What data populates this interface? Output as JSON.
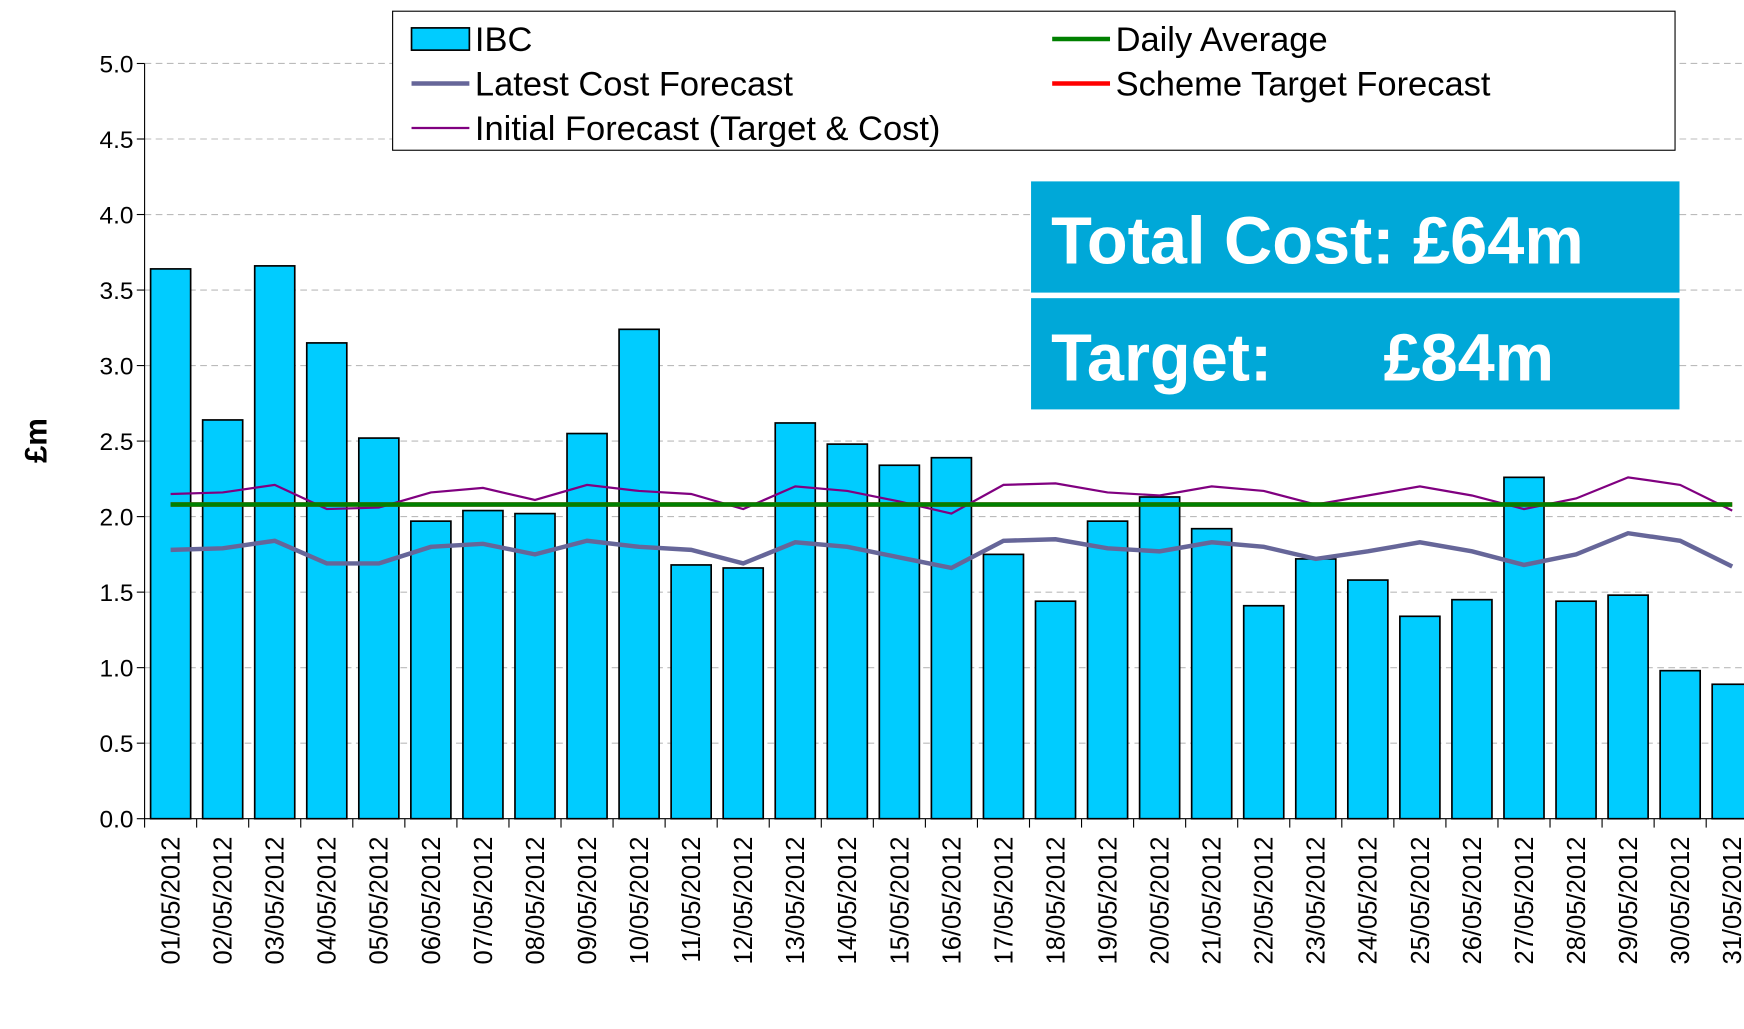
{
  "chart_data": {
    "type": "bar",
    "y_label": "£m",
    "categories": [
      "01/05/2012",
      "02/05/2012",
      "03/05/2012",
      "04/05/2012",
      "05/05/2012",
      "06/05/2012",
      "07/05/2012",
      "08/05/2012",
      "09/05/2012",
      "10/05/2012",
      "11/05/2012",
      "12/05/2012",
      "13/05/2012",
      "14/05/2012",
      "15/05/2012",
      "16/05/2012",
      "17/05/2012",
      "18/05/2012",
      "19/05/2012",
      "20/05/2012",
      "21/05/2012",
      "22/05/2012",
      "23/05/2012",
      "24/05/2012",
      "25/05/2012",
      "26/05/2012",
      "27/05/2012",
      "28/05/2012",
      "29/05/2012",
      "30/05/2012",
      "31/05/2012"
    ],
    "series": [
      {
        "name": "IBC",
        "type": "bar",
        "color": "#00ccff",
        "values": [
          3.64,
          2.64,
          3.66,
          3.15,
          2.52,
          1.97,
          2.04,
          2.02,
          2.55,
          3.24,
          1.68,
          1.66,
          2.62,
          2.48,
          2.34,
          2.39,
          1.75,
          1.44,
          1.97,
          2.13,
          1.92,
          1.41,
          1.72,
          1.58,
          1.34,
          1.45,
          2.26,
          1.44,
          1.48,
          0.98,
          0.89
        ]
      },
      {
        "name": "Latest Cost Forecast",
        "type": "line",
        "color": "#666699",
        "width": 4,
        "values": [
          1.78,
          1.79,
          1.84,
          1.69,
          1.69,
          1.8,
          1.82,
          1.75,
          1.84,
          1.8,
          1.78,
          1.69,
          1.83,
          1.8,
          1.73,
          1.66,
          1.84,
          1.85,
          1.79,
          1.77,
          1.83,
          1.8,
          1.72,
          1.77,
          1.83,
          1.77,
          1.68,
          1.75,
          1.89,
          1.84,
          1.67
        ]
      },
      {
        "name": "Initial Forecast (Target & Cost)",
        "type": "line",
        "color": "#800080",
        "width": 2,
        "values": [
          2.15,
          2.16,
          2.21,
          2.05,
          2.06,
          2.16,
          2.19,
          2.11,
          2.21,
          2.17,
          2.15,
          2.05,
          2.2,
          2.17,
          2.1,
          2.02,
          2.21,
          2.22,
          2.16,
          2.14,
          2.2,
          2.17,
          2.08,
          2.14,
          2.2,
          2.14,
          2.05,
          2.12,
          2.26,
          2.21,
          2.04
        ]
      },
      {
        "name": "Scheme Target Forecast",
        "type": "line",
        "color": "#ff0000",
        "width": 4,
        "values": [
          2.08,
          2.08,
          2.08,
          2.08,
          2.08,
          2.08,
          2.08,
          2.08,
          2.08,
          2.08,
          2.08,
          2.08,
          2.08,
          2.08,
          2.08,
          2.08,
          2.08,
          2.08,
          2.08,
          2.08,
          2.08,
          2.08,
          2.08,
          2.08,
          2.08,
          2.08,
          2.08,
          2.08,
          2.08,
          2.08,
          2.08
        ]
      },
      {
        "name": "Daily Average",
        "type": "line",
        "color": "#008000",
        "width": 4,
        "values": [
          2.08,
          2.08,
          2.08,
          2.08,
          2.08,
          2.08,
          2.08,
          2.08,
          2.08,
          2.08,
          2.08,
          2.08,
          2.08,
          2.08,
          2.08,
          2.08,
          2.08,
          2.08,
          2.08,
          2.08,
          2.08,
          2.08,
          2.08,
          2.08,
          2.08,
          2.08,
          2.08,
          2.08,
          2.08,
          2.08,
          2.08
        ]
      }
    ],
    "ylim": [
      0,
      5
    ],
    "yticks": [
      {
        "value": 0,
        "label": "0.0"
      },
      0.5,
      {
        "value": 1,
        "label": "1.0"
      },
      1.5,
      {
        "value": 2,
        "label": "2.0"
      },
      2.5,
      {
        "value": 3,
        "label": "3.0"
      },
      3.5,
      {
        "value": 4,
        "label": "4.0"
      },
      4.5,
      {
        "value": 5,
        "label": "5.0"
      }
    ],
    "grid": true,
    "legend": "top",
    "annotations": [
      "Total Cost: £64m",
      "Target:      £84m"
    ],
    "annotation_color": "#00a8d8"
  }
}
